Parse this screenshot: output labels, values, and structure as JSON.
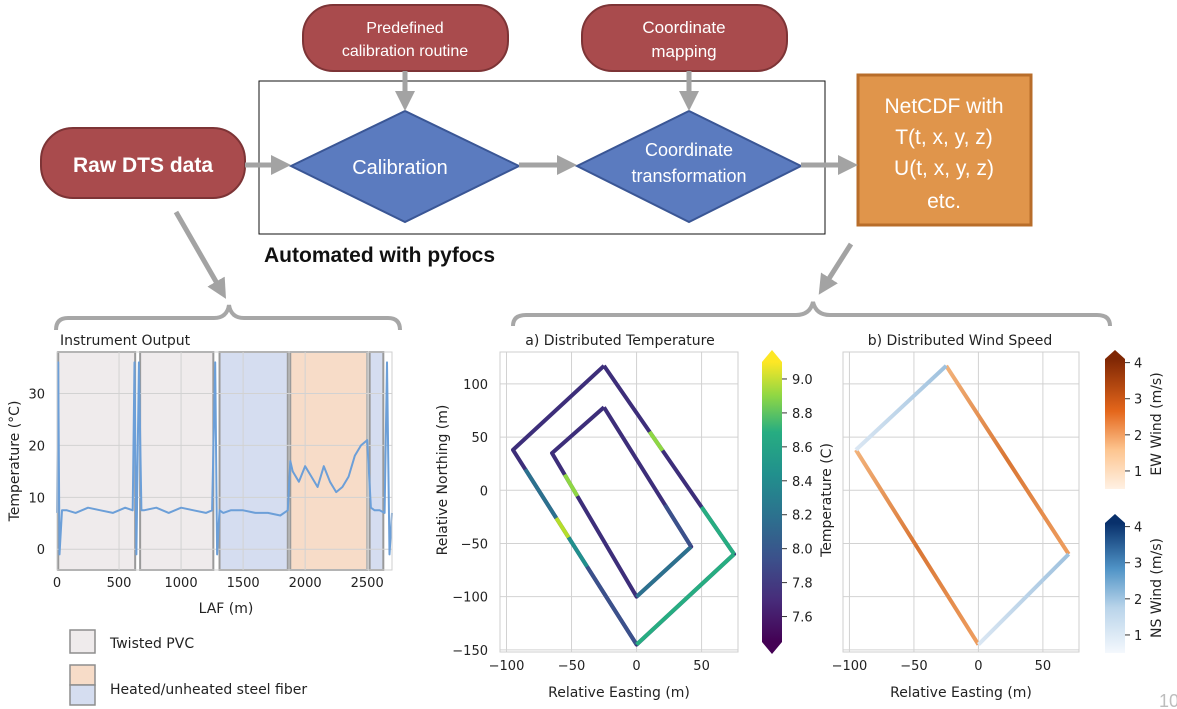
{
  "flow": {
    "predefined_line1": "Predefined",
    "predefined_line2": "calibration routine",
    "coord_map_line1": "Coordinate",
    "coord_map_line2": "mapping",
    "raw": "Raw DTS data",
    "calibration": "Calibration",
    "coord_trans_line1": "Coordinate",
    "coord_trans_line2": "transformation",
    "netcdf_line1": "NetCDF with",
    "netcdf_line2": "T(t, x, y, z)",
    "netcdf_line3": "U(t, x, y, z)",
    "netcdf_line4": "etc.",
    "automated": "Automated with pyfocs",
    "colors": {
      "red_box": "#a94b4d",
      "blue_diamond": "#5b7bbf",
      "orange_box": "#e0954b",
      "arrow": "#9a9a9a"
    }
  },
  "legend": {
    "twisted_pvc": "Twisted PVC",
    "steel_fiber": "Heated/unheated steel fiber",
    "colors": {
      "pvc": "#efebec",
      "heated": "#f7dcc8",
      "unheated": "#d5ddf0"
    }
  },
  "page_number": "10",
  "chart_data": [
    {
      "type": "line",
      "title": "Instrument Output",
      "xlabel": "LAF (m)",
      "ylabel": "Temperature (°C)",
      "xlim": [
        0,
        2700
      ],
      "ylim": [
        -4,
        38
      ],
      "xticks": [
        "0",
        "500",
        "1000",
        "1500",
        "2000",
        "2500"
      ],
      "yticks": [
        "0",
        "10",
        "20",
        "30"
      ],
      "regions": [
        {
          "type": "Twisted PVC",
          "x0": 10,
          "x1": 630
        },
        {
          "type": "Twisted PVC",
          "x0": 670,
          "x1": 1260
        },
        {
          "type": "unheated steel fiber",
          "x0": 1310,
          "x1": 1860
        },
        {
          "type": "heated steel fiber",
          "x0": 1880,
          "x1": 2500
        },
        {
          "type": "unheated steel fiber",
          "x0": 2520,
          "x1": 2630
        }
      ],
      "series_desc": "temperature vs LAF",
      "x": [
        0,
        10,
        20,
        40,
        80,
        150,
        250,
        350,
        450,
        550,
        610,
        625,
        640,
        660,
        680,
        700,
        800,
        900,
        1000,
        1100,
        1200,
        1250,
        1275,
        1290,
        1310,
        1340,
        1400,
        1500,
        1600,
        1700,
        1800,
        1860,
        1880,
        1900,
        1950,
        2000,
        2050,
        2100,
        2150,
        2200,
        2250,
        2300,
        2350,
        2400,
        2450,
        2500,
        2530,
        2560,
        2600,
        2640,
        2660,
        2680,
        2700
      ],
      "y": [
        7,
        36,
        -1,
        7.5,
        7.5,
        7,
        8,
        7.5,
        7,
        8,
        7.5,
        36,
        -1,
        36,
        7.5,
        7.5,
        8,
        7,
        8,
        7.5,
        7,
        7.5,
        36,
        -1,
        7.5,
        7,
        7.5,
        7.5,
        7,
        7,
        6.5,
        7.5,
        17,
        15,
        13,
        16,
        14,
        12,
        16,
        13,
        11,
        12,
        14,
        18,
        20,
        21,
        8,
        7.5,
        7.5,
        7,
        36,
        -1,
        7
      ]
    },
    {
      "type": "scatter",
      "title": "a) Distributed Temperature",
      "xlabel": "Relative Easting (m)",
      "ylabel": "Relative Northing (m)",
      "xlim": [
        -105,
        78
      ],
      "ylim": [
        -152,
        130
      ],
      "xticks": [
        "−100",
        "−50",
        "0",
        "50"
      ],
      "yticks": [
        "100",
        "50",
        "0",
        "−50",
        "−100",
        "−150"
      ],
      "colorbar": {
        "label": "Temperature (C)",
        "min": 7.45,
        "max": 9.1,
        "ticks": [
          "7.6",
          "7.8",
          "8.0",
          "8.2",
          "8.4",
          "8.6",
          "8.8",
          "9.0"
        ],
        "colormap": "viridis"
      },
      "outer_path": [
        [
          -25,
          117
        ],
        [
          -95,
          38
        ],
        [
          0,
          -145
        ],
        [
          75,
          -60
        ],
        [
          -25,
          117
        ]
      ],
      "inner_path": [
        [
          -25,
          78
        ],
        [
          -65,
          35
        ],
        [
          0,
          -100
        ],
        [
          42,
          -53
        ],
        [
          -25,
          78
        ]
      ],
      "temperature_desc": "mostly 7.5–7.7 C with warmer segments up to ~9.0 C on the western leg"
    },
    {
      "type": "scatter",
      "title": "b) Distributed Wind Speed",
      "xlabel": "Relative Easting (m)",
      "ylabel": "",
      "xlim": [
        -105,
        78
      ],
      "ylim": [
        -152,
        130
      ],
      "xticks": [
        "−100",
        "−50",
        "0",
        "50"
      ],
      "colorbar_ew": {
        "label": "EW Wind (m/s)",
        "min": 0.5,
        "max": 4.1,
        "ticks": [
          "1",
          "2",
          "3",
          "4"
        ],
        "colormap": "Oranges"
      },
      "colorbar_ns": {
        "label": "NS Wind (m/s)",
        "min": 0.5,
        "max": 4.1,
        "ticks": [
          "1",
          "2",
          "3",
          "4"
        ],
        "colormap": "Blues"
      },
      "ew_segments": [
        [
          [
            -25,
            117
          ],
          [
            70,
            -60
          ]
        ],
        [
          [
            -95,
            38
          ],
          [
            0,
            -145
          ]
        ]
      ],
      "ns_segments": [
        [
          [
            -25,
            117
          ],
          [
            -95,
            38
          ]
        ],
        [
          [
            0,
            -145
          ],
          [
            70,
            -60
          ]
        ]
      ]
    }
  ]
}
